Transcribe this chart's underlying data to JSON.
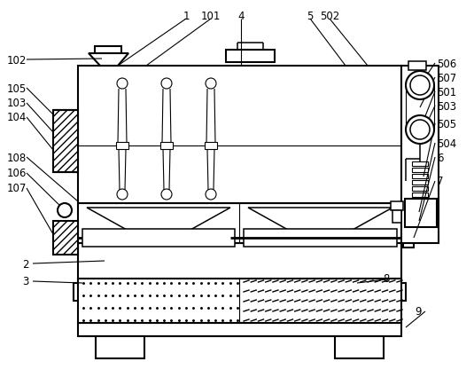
{
  "bg_color": "#ffffff",
  "line_color": "#000000",
  "lw_main": 1.5,
  "lw_thin": 0.8,
  "lw_med": 1.1,
  "top_labels": [
    [
      "1",
      210,
      18
    ],
    [
      "101",
      238,
      18
    ],
    [
      "4",
      272,
      18
    ],
    [
      "5",
      350,
      18
    ],
    [
      "502",
      372,
      18
    ]
  ],
  "right_labels": [
    [
      "506",
      493,
      72
    ],
    [
      "507",
      493,
      88
    ],
    [
      "501",
      493,
      104
    ],
    [
      "503",
      493,
      120
    ],
    [
      "505",
      493,
      140
    ],
    [
      "504",
      493,
      162
    ],
    [
      "6",
      493,
      178
    ],
    [
      "7",
      493,
      205
    ]
  ],
  "left_labels": [
    [
      "102",
      8,
      68
    ],
    [
      "105",
      8,
      100
    ],
    [
      "103",
      8,
      117
    ],
    [
      "104",
      8,
      133
    ],
    [
      "108",
      8,
      178
    ],
    [
      "106",
      8,
      196
    ],
    [
      "107",
      8,
      213
    ]
  ],
  "bot_labels": [
    [
      "2",
      25,
      298
    ],
    [
      "3",
      25,
      318
    ],
    [
      "8",
      432,
      315
    ],
    [
      "9",
      468,
      352
    ]
  ]
}
